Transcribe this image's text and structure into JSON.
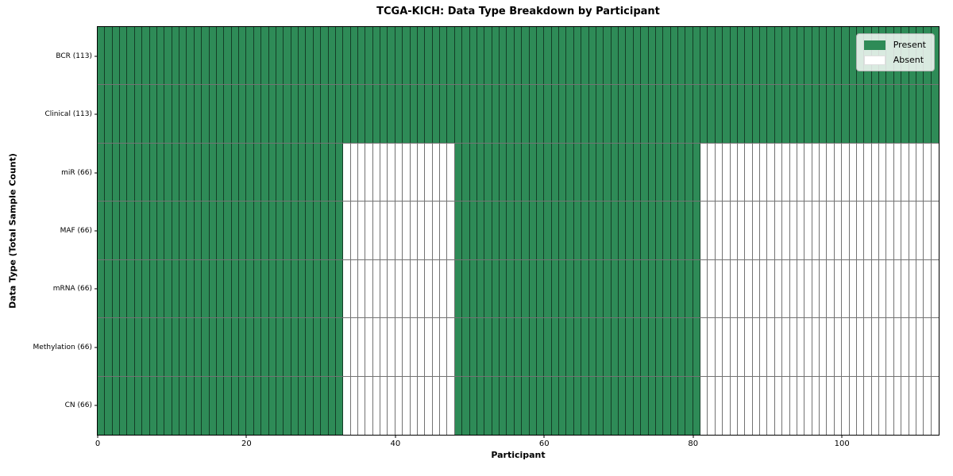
{
  "chart_data": {
    "type": "heatmap",
    "title": "TCGA-KICH: Data Type Breakdown by Participant",
    "xlabel": "Participant",
    "ylabel": "Data Type (Total Sample Count)",
    "n_participants": 113,
    "x_range": [
      0,
      113
    ],
    "x_ticks": [
      0,
      20,
      40,
      60,
      80,
      100
    ],
    "grid": false,
    "legend_position": "upper right",
    "legend": [
      {
        "label": "Present",
        "color": "#2e8b57"
      },
      {
        "label": "Absent",
        "color": "#ffffff"
      }
    ],
    "rows": [
      {
        "label": "BCR (113)",
        "data_type": "BCR",
        "sample_count": 113,
        "present_ranges": [
          [
            0,
            112
          ]
        ]
      },
      {
        "label": "Clinical (113)",
        "data_type": "Clinical",
        "sample_count": 113,
        "present_ranges": [
          [
            0,
            112
          ]
        ]
      },
      {
        "label": "miR (66)",
        "data_type": "miR",
        "sample_count": 66,
        "present_ranges": [
          [
            0,
            32
          ],
          [
            48,
            80
          ]
        ]
      },
      {
        "label": "MAF (66)",
        "data_type": "MAF",
        "sample_count": 66,
        "present_ranges": [
          [
            0,
            32
          ],
          [
            48,
            80
          ]
        ]
      },
      {
        "label": "mRNA (66)",
        "data_type": "mRNA",
        "sample_count": 66,
        "present_ranges": [
          [
            0,
            32
          ],
          [
            48,
            80
          ]
        ]
      },
      {
        "label": "Methylation (66)",
        "data_type": "Methylation",
        "sample_count": 66,
        "present_ranges": [
          [
            0,
            32
          ],
          [
            48,
            80
          ]
        ]
      },
      {
        "label": "CN (66)",
        "data_type": "CN",
        "sample_count": 66,
        "present_ranges": [
          [
            0,
            32
          ],
          [
            48,
            80
          ]
        ]
      }
    ]
  }
}
